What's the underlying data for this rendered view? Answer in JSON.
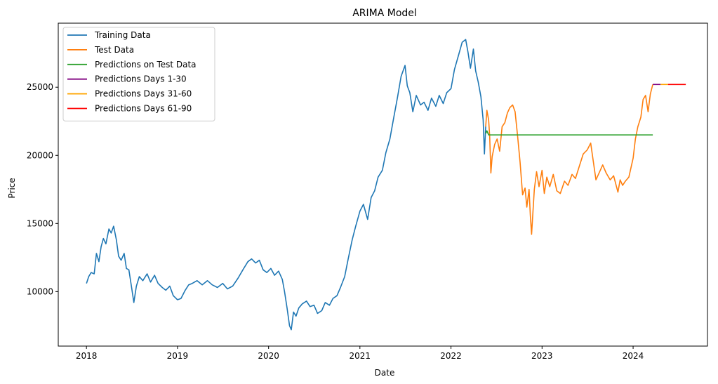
{
  "chart_data": {
    "type": "line",
    "title": "ARIMA Model",
    "xlabel": "Date",
    "ylabel": "Price",
    "x_axis": "date",
    "xlim": [
      "2017-09-10",
      "2024-10-25"
    ],
    "ylim": [
      6000,
      29700
    ],
    "xticks": [
      {
        "date": "2018-01-01",
        "label": "2018"
      },
      {
        "date": "2019-01-01",
        "label": "2019"
      },
      {
        "date": "2020-01-01",
        "label": "2020"
      },
      {
        "date": "2021-01-01",
        "label": "2021"
      },
      {
        "date": "2022-01-01",
        "label": "2022"
      },
      {
        "date": "2023-01-01",
        "label": "2023"
      },
      {
        "date": "2024-01-01",
        "label": "2024"
      }
    ],
    "yticks": [
      10000,
      15000,
      20000,
      25000
    ],
    "grid": false,
    "legend_position": "upper-left",
    "series": [
      {
        "name": "Training Data",
        "color": "#1f77b4",
        "points": [
          [
            "2018-01-01",
            10600
          ],
          [
            "2018-01-10",
            11100
          ],
          [
            "2018-01-20",
            11400
          ],
          [
            "2018-02-01",
            11300
          ],
          [
            "2018-02-10",
            12800
          ],
          [
            "2018-02-20",
            12200
          ],
          [
            "2018-03-01",
            13300
          ],
          [
            "2018-03-10",
            13900
          ],
          [
            "2018-03-20",
            13500
          ],
          [
            "2018-04-01",
            14600
          ],
          [
            "2018-04-10",
            14300
          ],
          [
            "2018-04-20",
            14800
          ],
          [
            "2018-05-01",
            13800
          ],
          [
            "2018-05-10",
            12600
          ],
          [
            "2018-05-20",
            12300
          ],
          [
            "2018-06-01",
            12800
          ],
          [
            "2018-06-10",
            11700
          ],
          [
            "2018-06-20",
            11600
          ],
          [
            "2018-07-01",
            10300
          ],
          [
            "2018-07-10",
            9200
          ],
          [
            "2018-07-20",
            10400
          ],
          [
            "2018-08-01",
            11100
          ],
          [
            "2018-08-15",
            10800
          ],
          [
            "2018-09-01",
            11300
          ],
          [
            "2018-09-15",
            10700
          ],
          [
            "2018-10-01",
            11200
          ],
          [
            "2018-10-15",
            10600
          ],
          [
            "2018-11-01",
            10300
          ],
          [
            "2018-11-15",
            10100
          ],
          [
            "2018-12-01",
            10400
          ],
          [
            "2018-12-15",
            9700
          ],
          [
            "2019-01-01",
            9400
          ],
          [
            "2019-01-15",
            9500
          ],
          [
            "2019-02-01",
            10100
          ],
          [
            "2019-02-15",
            10500
          ],
          [
            "2019-03-01",
            10600
          ],
          [
            "2019-03-20",
            10800
          ],
          [
            "2019-04-10",
            10500
          ],
          [
            "2019-05-01",
            10800
          ],
          [
            "2019-05-20",
            10500
          ],
          [
            "2019-06-10",
            10300
          ],
          [
            "2019-07-01",
            10600
          ],
          [
            "2019-07-20",
            10200
          ],
          [
            "2019-08-10",
            10400
          ],
          [
            "2019-09-01",
            11000
          ],
          [
            "2019-09-20",
            11600
          ],
          [
            "2019-10-10",
            12200
          ],
          [
            "2019-10-25",
            12400
          ],
          [
            "2019-11-10",
            12100
          ],
          [
            "2019-11-25",
            12300
          ],
          [
            "2019-12-10",
            11600
          ],
          [
            "2019-12-25",
            11400
          ],
          [
            "2020-01-10",
            11700
          ],
          [
            "2020-01-25",
            11200
          ],
          [
            "2020-02-10",
            11500
          ],
          [
            "2020-02-25",
            10900
          ],
          [
            "2020-03-05",
            10000
          ],
          [
            "2020-03-15",
            8800
          ],
          [
            "2020-03-25",
            7500
          ],
          [
            "2020-04-01",
            7200
          ],
          [
            "2020-04-10",
            8500
          ],
          [
            "2020-04-20",
            8200
          ],
          [
            "2020-05-01",
            8800
          ],
          [
            "2020-05-15",
            9100
          ],
          [
            "2020-06-01",
            9300
          ],
          [
            "2020-06-15",
            8900
          ],
          [
            "2020-07-01",
            9000
          ],
          [
            "2020-07-15",
            8400
          ],
          [
            "2020-08-01",
            8600
          ],
          [
            "2020-08-15",
            9200
          ],
          [
            "2020-09-01",
            9000
          ],
          [
            "2020-09-15",
            9500
          ],
          [
            "2020-10-01",
            9700
          ],
          [
            "2020-10-15",
            10300
          ],
          [
            "2020-11-01",
            11100
          ],
          [
            "2020-11-15",
            12400
          ],
          [
            "2020-12-01",
            13800
          ],
          [
            "2020-12-15",
            14800
          ],
          [
            "2021-01-01",
            15900
          ],
          [
            "2021-01-15",
            16400
          ],
          [
            "2021-02-01",
            15300
          ],
          [
            "2021-02-15",
            16900
          ],
          [
            "2021-03-01",
            17400
          ],
          [
            "2021-03-15",
            18400
          ],
          [
            "2021-04-01",
            18900
          ],
          [
            "2021-04-15",
            20200
          ],
          [
            "2021-05-01",
            21200
          ],
          [
            "2021-05-15",
            22600
          ],
          [
            "2021-06-01",
            24300
          ],
          [
            "2021-06-15",
            25800
          ],
          [
            "2021-07-01",
            26600
          ],
          [
            "2021-07-10",
            25100
          ],
          [
            "2021-07-20",
            24600
          ],
          [
            "2021-08-01",
            23200
          ],
          [
            "2021-08-15",
            24400
          ],
          [
            "2021-09-01",
            23700
          ],
          [
            "2021-09-15",
            23900
          ],
          [
            "2021-10-01",
            23300
          ],
          [
            "2021-10-15",
            24200
          ],
          [
            "2021-11-01",
            23600
          ],
          [
            "2021-11-15",
            24400
          ],
          [
            "2021-12-01",
            23800
          ],
          [
            "2021-12-15",
            24600
          ],
          [
            "2022-01-01",
            24900
          ],
          [
            "2022-01-15",
            26300
          ],
          [
            "2022-02-01",
            27400
          ],
          [
            "2022-02-15",
            28300
          ],
          [
            "2022-03-01",
            28500
          ],
          [
            "2022-03-10",
            27600
          ],
          [
            "2022-03-20",
            26400
          ],
          [
            "2022-04-01",
            27800
          ],
          [
            "2022-04-10",
            26200
          ],
          [
            "2022-04-20",
            25400
          ],
          [
            "2022-05-01",
            24300
          ],
          [
            "2022-05-10",
            22600
          ],
          [
            "2022-05-15",
            20100
          ],
          [
            "2022-05-20",
            22100
          ]
        ]
      },
      {
        "name": "Test Data",
        "color": "#ff7f0e",
        "points": [
          [
            "2022-05-20",
            22100
          ],
          [
            "2022-05-25",
            23300
          ],
          [
            "2022-06-01",
            22600
          ],
          [
            "2022-06-05",
            21400
          ],
          [
            "2022-06-10",
            18700
          ],
          [
            "2022-06-15",
            19900
          ],
          [
            "2022-06-25",
            20800
          ],
          [
            "2022-07-05",
            21200
          ],
          [
            "2022-07-15",
            20300
          ],
          [
            "2022-07-25",
            22100
          ],
          [
            "2022-08-05",
            22400
          ],
          [
            "2022-08-15",
            23100
          ],
          [
            "2022-08-25",
            23500
          ],
          [
            "2022-09-05",
            23700
          ],
          [
            "2022-09-15",
            23200
          ],
          [
            "2022-09-25",
            21400
          ],
          [
            "2022-10-05",
            19500
          ],
          [
            "2022-10-15",
            17100
          ],
          [
            "2022-10-25",
            17600
          ],
          [
            "2022-11-01",
            16200
          ],
          [
            "2022-11-10",
            17500
          ],
          [
            "2022-11-15",
            15600
          ],
          [
            "2022-11-20",
            14200
          ],
          [
            "2022-12-01",
            17500
          ],
          [
            "2022-12-10",
            18800
          ],
          [
            "2022-12-20",
            17700
          ],
          [
            "2023-01-01",
            18900
          ],
          [
            "2023-01-10",
            17200
          ],
          [
            "2023-01-20",
            18400
          ],
          [
            "2023-02-01",
            17700
          ],
          [
            "2023-02-15",
            18600
          ],
          [
            "2023-03-01",
            17400
          ],
          [
            "2023-03-15",
            17200
          ],
          [
            "2023-04-01",
            18100
          ],
          [
            "2023-04-15",
            17800
          ],
          [
            "2023-05-01",
            18600
          ],
          [
            "2023-05-15",
            18300
          ],
          [
            "2023-06-01",
            19300
          ],
          [
            "2023-06-15",
            20100
          ],
          [
            "2023-07-01",
            20400
          ],
          [
            "2023-07-15",
            20900
          ],
          [
            "2023-07-25",
            19600
          ],
          [
            "2023-08-05",
            18200
          ],
          [
            "2023-08-20",
            18800
          ],
          [
            "2023-09-01",
            19300
          ],
          [
            "2023-09-15",
            18700
          ],
          [
            "2023-10-01",
            18200
          ],
          [
            "2023-10-15",
            18500
          ],
          [
            "2023-11-01",
            17300
          ],
          [
            "2023-11-10",
            18200
          ],
          [
            "2023-11-20",
            17800
          ],
          [
            "2023-12-01",
            18100
          ],
          [
            "2023-12-15",
            18400
          ],
          [
            "2024-01-01",
            19800
          ],
          [
            "2024-01-10",
            21200
          ],
          [
            "2024-01-20",
            22100
          ],
          [
            "2024-02-01",
            22800
          ],
          [
            "2024-02-10",
            24100
          ],
          [
            "2024-02-20",
            24400
          ],
          [
            "2024-03-01",
            23200
          ],
          [
            "2024-03-10",
            24500
          ],
          [
            "2024-03-20",
            25200
          ]
        ]
      },
      {
        "name": "Predictions on Test Data",
        "color": "#2ca02c",
        "points": [
          [
            "2022-05-20",
            21600
          ],
          [
            "2022-05-25",
            21800
          ],
          [
            "2022-06-01",
            21500
          ],
          [
            "2024-03-20",
            21500
          ]
        ]
      },
      {
        "name": "Predictions Days 1-30",
        "color": "#800080",
        "points": [
          [
            "2024-03-20",
            25200
          ],
          [
            "2024-04-20",
            25200
          ]
        ]
      },
      {
        "name": "Predictions Days 31-60",
        "color": "#ffa500",
        "points": [
          [
            "2024-04-20",
            25200
          ],
          [
            "2024-05-20",
            25200
          ]
        ]
      },
      {
        "name": "Predictions Days 61-90",
        "color": "#ff0000",
        "points": [
          [
            "2024-05-20",
            25200
          ],
          [
            "2024-07-30",
            25200
          ]
        ]
      }
    ]
  }
}
